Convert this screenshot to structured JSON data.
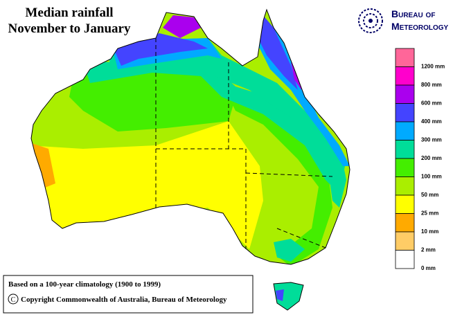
{
  "title": [
    "Median rainfall",
    "November to January"
  ],
  "logo": {
    "line1": "Bureau of",
    "line2": "Meteorology"
  },
  "legend": {
    "items": [
      {
        "label": "1200 mm",
        "color": "#ff6699"
      },
      {
        "label": "800 mm",
        "color": "#ff00cc"
      },
      {
        "label": "600 mm",
        "color": "#aa00ee"
      },
      {
        "label": "400 mm",
        "color": "#4444ff"
      },
      {
        "label": "300 mm",
        "color": "#00aaff"
      },
      {
        "label": "200 mm",
        "color": "#00dd99"
      },
      {
        "label": "100 mm",
        "color": "#44ee00"
      },
      {
        "label": "50 mm",
        "color": "#aaee00"
      },
      {
        "label": "25 mm",
        "color": "#ffff00"
      },
      {
        "label": "10 mm",
        "color": "#ffaa00"
      },
      {
        "label": "2 mm",
        "color": "#ffcc66"
      },
      {
        "label": "0 mm",
        "color": "#ffffff"
      }
    ]
  },
  "footnote": {
    "line1": "Based on a 100-year climatology (1900 to 1999)",
    "line2": "Copyright Commonwealth of Australia, Bureau of Meteorology"
  }
}
